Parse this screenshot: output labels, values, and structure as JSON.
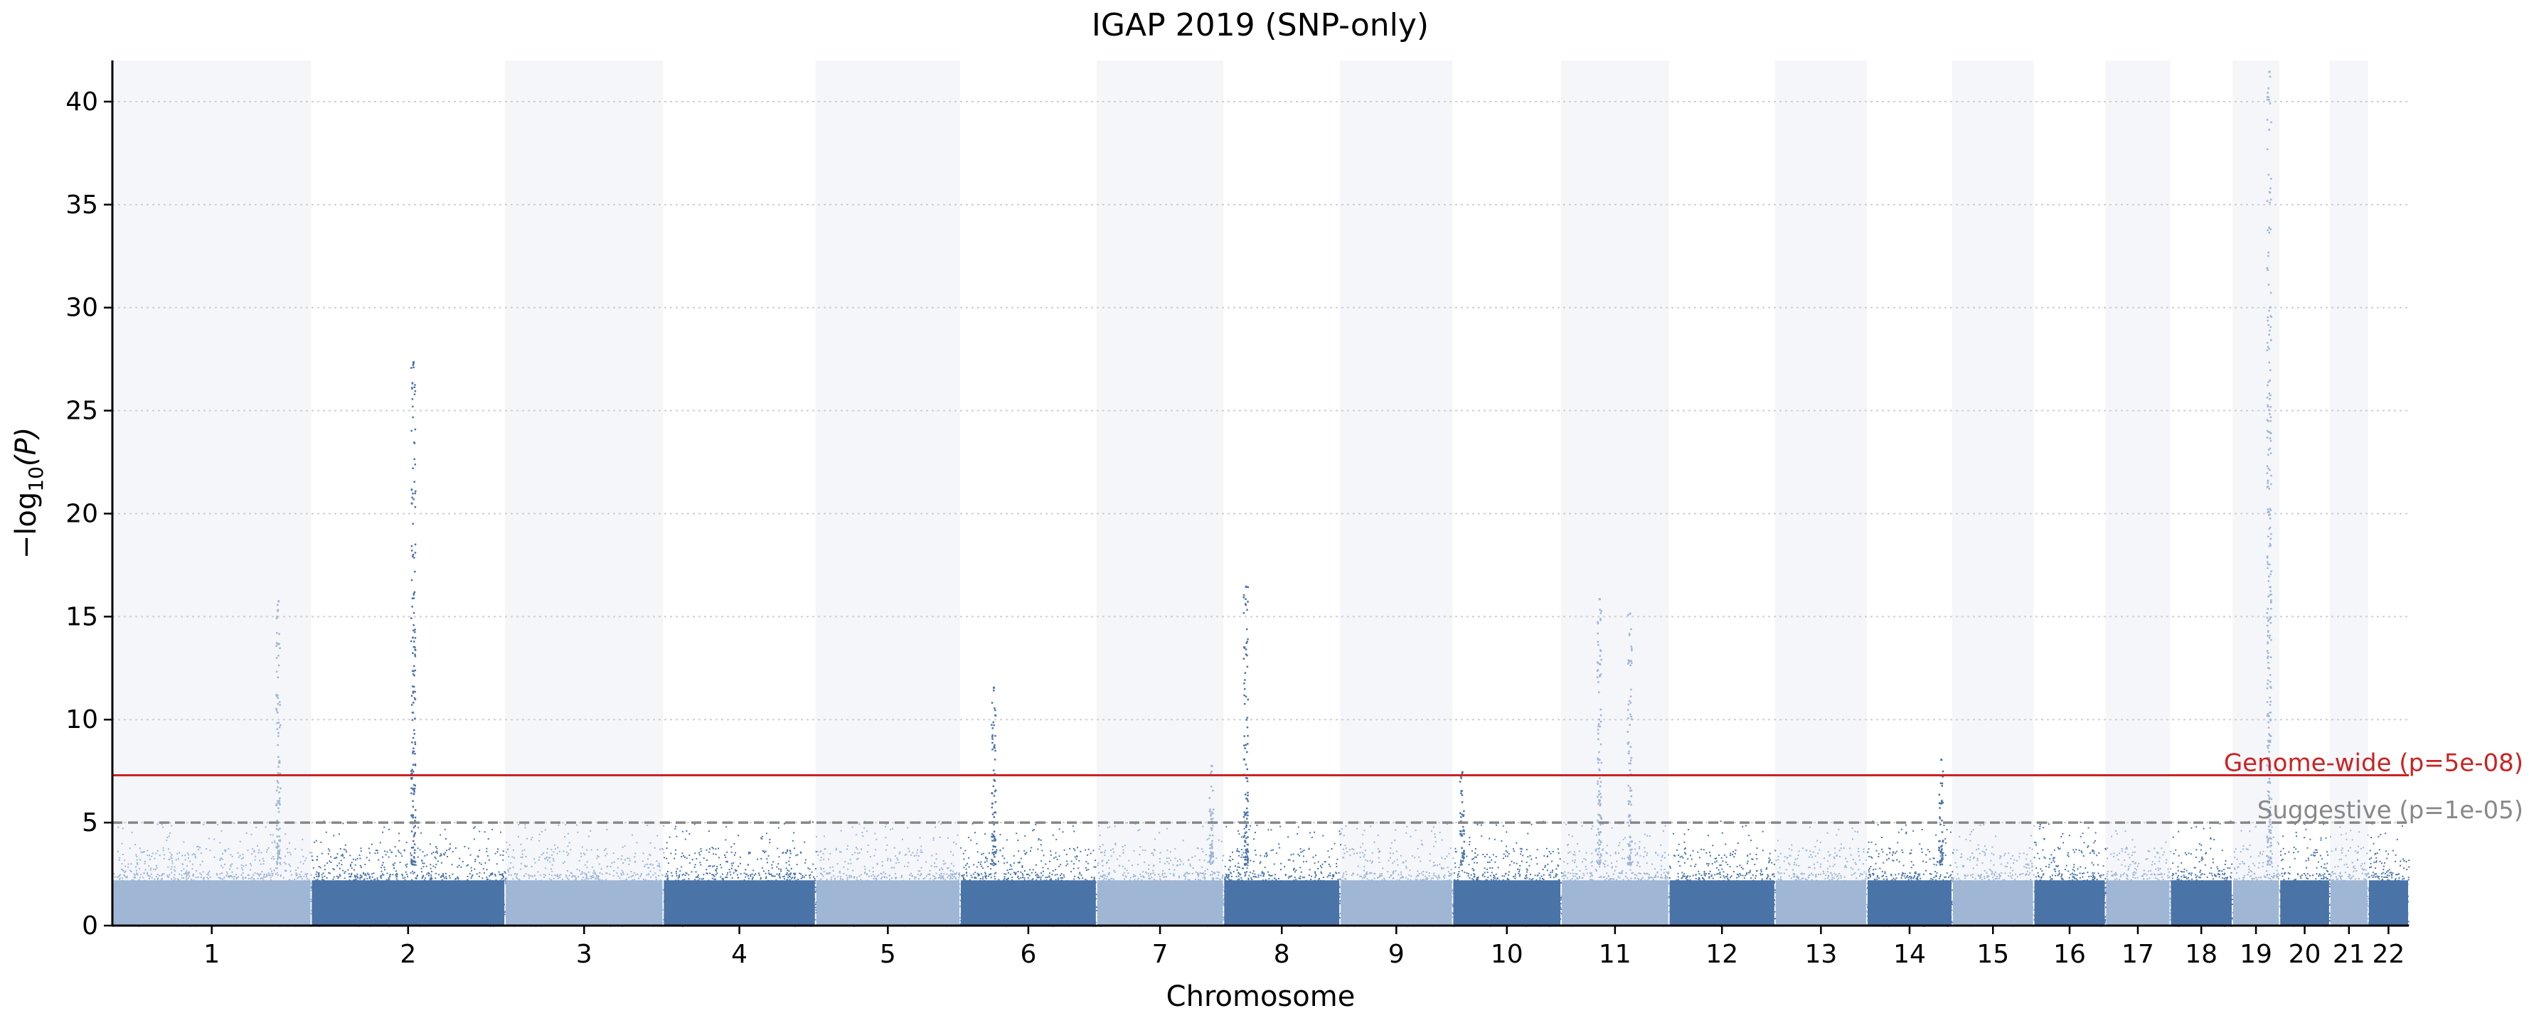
{
  "chart_data": {
    "type": "scatter",
    "subtype": "manhattan",
    "title": "IGAP 2019 (SNP-only)",
    "xlabel": "Chromosome",
    "ylabel": "−log",
    "ylabel_sub": "10",
    "ylabel_suffix": "(P)",
    "ylim": [
      0,
      42
    ],
    "yticks": [
      0,
      5,
      10,
      15,
      20,
      25,
      30,
      35,
      40
    ],
    "grid": "horizontal dotted",
    "colors": {
      "odd_chrom": "#9fb6d4",
      "even_chrom": "#4a74a8",
      "band": "#f4f6fa",
      "genome_wide": "#cc2222",
      "suggestive": "#888888"
    },
    "thresholds": [
      {
        "name": "Genome-wide (p=5e-08)",
        "value": 7.3,
        "style": "solid",
        "color": "#cc2222"
      },
      {
        "name": "Suggestive (p=1e-05)",
        "value": 5.0,
        "style": "dashed",
        "color": "#888888"
      }
    ],
    "chromosomes": [
      {
        "chr": "1",
        "length": 249
      },
      {
        "chr": "2",
        "length": 243
      },
      {
        "chr": "3",
        "length": 198
      },
      {
        "chr": "4",
        "length": 191
      },
      {
        "chr": "5",
        "length": 181
      },
      {
        "chr": "6",
        "length": 171
      },
      {
        "chr": "7",
        "length": 159
      },
      {
        "chr": "8",
        "length": 146
      },
      {
        "chr": "9",
        "length": 141
      },
      {
        "chr": "10",
        "length": 136
      },
      {
        "chr": "11",
        "length": 135
      },
      {
        "chr": "12",
        "length": 133
      },
      {
        "chr": "13",
        "length": 115
      },
      {
        "chr": "14",
        "length": 107
      },
      {
        "chr": "15",
        "length": 102
      },
      {
        "chr": "16",
        "length": 90
      },
      {
        "chr": "17",
        "length": 81
      },
      {
        "chr": "18",
        "length": 78
      },
      {
        "chr": "19",
        "length": 59
      },
      {
        "chr": "20",
        "length": 63
      },
      {
        "chr": "21",
        "length": 48
      },
      {
        "chr": "22",
        "length": 51
      }
    ],
    "peaks": [
      {
        "chr": "1",
        "pos": 207,
        "neglog10p": 15.8
      },
      {
        "chr": "2",
        "pos": 127,
        "neglog10p": 27.4
      },
      {
        "chr": "6",
        "pos": 41,
        "neglog10p": 11.6
      },
      {
        "chr": "7",
        "pos": 143,
        "neglog10p": 7.8
      },
      {
        "chr": "8",
        "pos": 27,
        "neglog10p": 16.5
      },
      {
        "chr": "10",
        "pos": 11,
        "neglog10p": 7.5
      },
      {
        "chr": "11",
        "pos": 47,
        "neglog10p": 15.9
      },
      {
        "chr": "11",
        "pos": 85,
        "neglog10p": 15.2
      },
      {
        "chr": "14",
        "pos": 92,
        "neglog10p": 8.1
      },
      {
        "chr": "19",
        "pos": 45,
        "neglog10p": 41.5
      }
    ]
  }
}
